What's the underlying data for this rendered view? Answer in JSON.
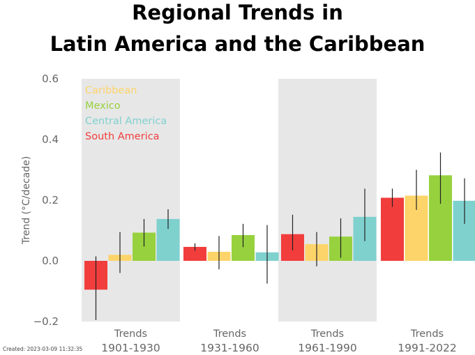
{
  "title_lines": [
    "Regional Trends in",
    "Latin America and the Caribbean"
  ],
  "footer": "Created: 2023-03-09 11:32:35",
  "colors": {
    "Caribbean": "#fdd46a",
    "Mexico": "#97d13e",
    "Central America": "#7fd1ce",
    "South America": "#f23d3d",
    "shade": "#e7e7e7",
    "errorbar": "#222222"
  },
  "chart_data": {
    "type": "bar",
    "ylabel": "Trend (°C/decade)",
    "ylim": [
      -0.2,
      0.6
    ],
    "yticks": [
      "−0.2",
      "0.0",
      "0.2",
      "0.4",
      "0.6"
    ],
    "ytick_values": [
      -0.2,
      0.0,
      0.2,
      0.4,
      0.6
    ],
    "legend": [
      "Caribbean",
      "Mexico",
      "Central America",
      "South America"
    ],
    "groups": [
      {
        "label_top": "Trends",
        "label_bottom": "1901-1930",
        "shaded": true,
        "bars": [
          {
            "series": "South America",
            "value": -0.095,
            "err_low": -0.195,
            "err_high": 0.015
          },
          {
            "series": "Caribbean",
            "value": 0.02,
            "err_low": -0.04,
            "err_high": 0.095
          },
          {
            "series": "Mexico",
            "value": 0.093,
            "err_low": 0.047,
            "err_high": 0.138
          },
          {
            "series": "Central America",
            "value": 0.138,
            "err_low": 0.105,
            "err_high": 0.17
          }
        ]
      },
      {
        "label_top": "Trends",
        "label_bottom": "1931-1960",
        "shaded": false,
        "bars": [
          {
            "series": "South America",
            "value": 0.046,
            "err_low": 0.033,
            "err_high": 0.058
          },
          {
            "series": "Caribbean",
            "value": 0.03,
            "err_low": -0.028,
            "err_high": 0.082
          },
          {
            "series": "Mexico",
            "value": 0.085,
            "err_low": 0.045,
            "err_high": 0.122
          },
          {
            "series": "Central America",
            "value": 0.028,
            "err_low": -0.075,
            "err_high": 0.118
          }
        ]
      },
      {
        "label_top": "Trends",
        "label_bottom": "1961-1990",
        "shaded": true,
        "bars": [
          {
            "series": "South America",
            "value": 0.088,
            "err_low": 0.035,
            "err_high": 0.152
          },
          {
            "series": "Caribbean",
            "value": 0.055,
            "err_low": -0.018,
            "err_high": 0.095
          },
          {
            "series": "Mexico",
            "value": 0.08,
            "err_low": 0.01,
            "err_high": 0.14
          },
          {
            "series": "Central America",
            "value": 0.145,
            "err_low": 0.065,
            "err_high": 0.238
          }
        ]
      },
      {
        "label_top": "Trends",
        "label_bottom": "1991-2022",
        "shaded": false,
        "bars": [
          {
            "series": "South America",
            "value": 0.208,
            "err_low": 0.178,
            "err_high": 0.238
          },
          {
            "series": "Caribbean",
            "value": 0.215,
            "err_low": 0.168,
            "err_high": 0.3
          },
          {
            "series": "Mexico",
            "value": 0.282,
            "err_low": 0.188,
            "err_high": 0.357
          },
          {
            "series": "Central America",
            "value": 0.198,
            "err_low": 0.122,
            "err_high": 0.272
          }
        ]
      }
    ]
  }
}
